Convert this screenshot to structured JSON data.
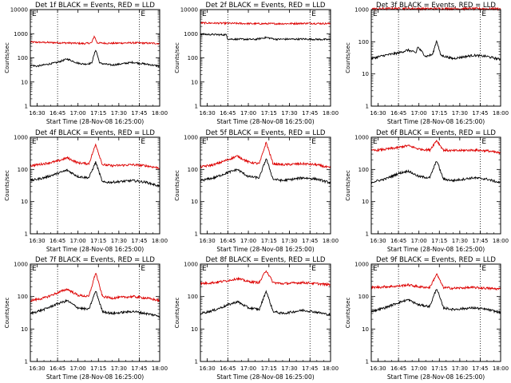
{
  "chart_data": [
    {
      "type": "line",
      "title": "Det 1f BLACK = Events, RED = LLD",
      "xlabel": "Start Time (28-Nov-08 16:25:00)",
      "ylabel": "Counts/sec",
      "y_scale": "log",
      "ylim": [
        1,
        10000
      ],
      "xlim": [
        "16:25",
        "18:00"
      ],
      "x_ticks": [
        "16:30",
        "16:45",
        "17:00",
        "17:15",
        "17:30",
        "17:45",
        "18:00"
      ],
      "y_ticks": [
        "1",
        "10",
        "100",
        "1000",
        "10000"
      ],
      "corner_marks": [
        "E",
        "E"
      ],
      "vlines": [
        "16:45",
        "17:45"
      ],
      "series": [
        {
          "color": "#dd0000",
          "x": [
            "16:25",
            "16:40",
            "16:55",
            "17:05",
            "17:10",
            "17:12",
            "17:14",
            "17:17",
            "17:25",
            "17:40",
            "17:55",
            "18:00"
          ],
          "values": [
            450,
            430,
            410,
            390,
            420,
            800,
            420,
            410,
            400,
            420,
            400,
            390
          ]
        },
        {
          "color": "#000000",
          "x": [
            "16:25",
            "16:30",
            "16:45",
            "16:52",
            "17:00",
            "17:05",
            "17:10",
            "17:13",
            "17:16",
            "17:25",
            "17:40",
            "17:50",
            "18:00"
          ],
          "values": [
            50,
            45,
            65,
            90,
            60,
            55,
            60,
            220,
            60,
            50,
            65,
            55,
            45
          ]
        }
      ]
    },
    {
      "type": "line",
      "title": "Det 2f BLACK = Events, RED = LLD",
      "xlabel": "Start Time (28-Nov-08 16:25:00)",
      "ylabel": "Counts/sec",
      "y_scale": "log",
      "ylim": [
        1,
        10000
      ],
      "xlim": [
        "16:25",
        "18:00"
      ],
      "x_ticks": [
        "16:30",
        "16:45",
        "17:00",
        "17:15",
        "17:30",
        "17:45",
        "18:00"
      ],
      "y_ticks": [
        "1",
        "10",
        "100",
        "1000",
        "10000"
      ],
      "corner_marks": [
        "E",
        "E"
      ],
      "vlines": [
        "16:45",
        "17:45"
      ],
      "series": [
        {
          "color": "#dd0000",
          "x": [
            "16:25",
            "16:45",
            "17:05",
            "17:25",
            "17:45",
            "18:00"
          ],
          "values": [
            2800,
            2700,
            2600,
            2600,
            2700,
            2600
          ]
        },
        {
          "color": "#000000",
          "x": [
            "16:25",
            "16:44",
            "16:45",
            "17:05",
            "17:13",
            "17:20",
            "17:40",
            "18:00"
          ],
          "values": [
            950,
            900,
            600,
            580,
            700,
            590,
            600,
            570
          ]
        }
      ]
    },
    {
      "type": "line",
      "title": "Det 3f BLACK = Events, RED = LLD",
      "xlabel": "Start Time (28-Nov-08 16:25:00)",
      "ylabel": "Counts/sec",
      "y_scale": "log",
      "ylim": [
        1,
        1000
      ],
      "xlim": [
        "16:25",
        "18:00"
      ],
      "x_ticks": [
        "16:30",
        "16:45",
        "17:00",
        "17:15",
        "17:30",
        "17:45",
        "18:00"
      ],
      "y_ticks": [
        "1",
        "10",
        "100",
        "1000"
      ],
      "corner_marks": [
        "E",
        "E"
      ],
      "vlines": [
        "16:45",
        "17:45"
      ],
      "series": [
        {
          "color": "#dd0000",
          "x": [
            "16:25",
            "16:45",
            "17:05",
            "17:25",
            "17:45",
            "18:00"
          ],
          "values": [
            1050,
            1080,
            1060,
            1070,
            1060,
            1050
          ]
        },
        {
          "color": "#000000",
          "x": [
            "16:25",
            "16:35",
            "16:45",
            "16:52",
            "16:58",
            "16:59",
            "17:05",
            "17:10",
            "17:13",
            "17:16",
            "17:25",
            "17:40",
            "17:50",
            "18:00"
          ],
          "values": [
            30,
            38,
            45,
            55,
            45,
            70,
            35,
            40,
            110,
            38,
            30,
            38,
            35,
            28
          ]
        }
      ]
    },
    {
      "type": "line",
      "title": "Det 4f BLACK = Events, RED = LLD",
      "xlabel": "Start Time (28-Nov-08 16:25:00)",
      "ylabel": "Counts/sec",
      "y_scale": "log",
      "ylim": [
        1,
        1000
      ],
      "xlim": [
        "16:25",
        "18:00"
      ],
      "x_ticks": [
        "16:30",
        "16:45",
        "17:00",
        "17:15",
        "17:30",
        "17:45",
        "18:00"
      ],
      "y_ticks": [
        "1",
        "10",
        "100",
        "1000"
      ],
      "corner_marks": [
        "E",
        "E"
      ],
      "vlines": [
        "16:45",
        "17:45"
      ],
      "series": [
        {
          "color": "#dd0000",
          "x": [
            "16:25",
            "16:35",
            "16:45",
            "16:52",
            "17:00",
            "17:08",
            "17:13",
            "17:18",
            "17:25",
            "17:40",
            "17:50",
            "18:00"
          ],
          "values": [
            130,
            150,
            180,
            230,
            160,
            150,
            600,
            140,
            130,
            140,
            130,
            110
          ]
        },
        {
          "color": "#000000",
          "x": [
            "16:25",
            "16:35",
            "16:45",
            "16:52",
            "17:00",
            "17:08",
            "17:13",
            "17:18",
            "17:25",
            "17:40",
            "17:50",
            "18:00"
          ],
          "values": [
            45,
            55,
            75,
            95,
            60,
            55,
            170,
            40,
            40,
            45,
            40,
            30
          ]
        }
      ]
    },
    {
      "type": "line",
      "title": "Det 5f BLACK = Events, RED = LLD",
      "xlabel": "Start Time (28-Nov-08 16:25:00)",
      "ylabel": "Counts/sec",
      "y_scale": "log",
      "ylim": [
        1,
        1000
      ],
      "xlim": [
        "16:25",
        "18:00"
      ],
      "x_ticks": [
        "16:30",
        "16:45",
        "17:00",
        "17:15",
        "17:30",
        "17:45",
        "18:00"
      ],
      "y_ticks": [
        "1",
        "10",
        "100",
        "1000"
      ],
      "corner_marks": [
        "E",
        "E"
      ],
      "vlines": [
        "16:45",
        "17:45"
      ],
      "series": [
        {
          "color": "#dd0000",
          "x": [
            "16:25",
            "16:35",
            "16:45",
            "16:52",
            "17:00",
            "17:08",
            "17:13",
            "17:18",
            "17:25",
            "17:40",
            "17:50",
            "18:00"
          ],
          "values": [
            120,
            140,
            200,
            260,
            170,
            150,
            700,
            150,
            140,
            150,
            140,
            110
          ]
        },
        {
          "color": "#000000",
          "x": [
            "16:25",
            "16:35",
            "16:45",
            "16:52",
            "17:00",
            "17:08",
            "17:13",
            "17:18",
            "17:25",
            "17:40",
            "17:50",
            "18:00"
          ],
          "values": [
            45,
            55,
            80,
            100,
            60,
            55,
            220,
            50,
            45,
            55,
            50,
            38
          ]
        }
      ]
    },
    {
      "type": "line",
      "title": "Det 6f BLACK = Events, RED = LLD",
      "xlabel": "Start Time (28-Nov-08 16:25:00)",
      "ylabel": "Counts/sec",
      "y_scale": "log",
      "ylim": [
        1,
        1000
      ],
      "xlim": [
        "16:25",
        "18:00"
      ],
      "x_ticks": [
        "16:30",
        "16:45",
        "17:00",
        "17:15",
        "17:30",
        "17:45",
        "18:00"
      ],
      "y_ticks": [
        "1",
        "10",
        "100",
        "1000"
      ],
      "corner_marks": [
        "E",
        "E"
      ],
      "vlines": [
        "16:45",
        "17:45"
      ],
      "series": [
        {
          "color": "#dd0000",
          "x": [
            "16:25",
            "16:35",
            "16:45",
            "16:52",
            "17:00",
            "17:08",
            "17:13",
            "17:18",
            "17:25",
            "17:40",
            "17:50",
            "18:00"
          ],
          "values": [
            380,
            420,
            480,
            550,
            430,
            400,
            800,
            400,
            380,
            400,
            380,
            320
          ]
        },
        {
          "color": "#000000",
          "x": [
            "16:25",
            "16:35",
            "16:45",
            "16:52",
            "17:00",
            "17:08",
            "17:13",
            "17:18",
            "17:25",
            "17:40",
            "17:50",
            "18:00"
          ],
          "values": [
            40,
            50,
            75,
            90,
            60,
            55,
            190,
            50,
            45,
            55,
            50,
            38
          ]
        }
      ]
    },
    {
      "type": "line",
      "title": "Det 7f BLACK = Events, RED = LLD",
      "xlabel": "Start Time (28-Nov-08 16:25:00)",
      "ylabel": "Counts/sec",
      "y_scale": "log",
      "ylim": [
        1,
        1000
      ],
      "xlim": [
        "16:25",
        "18:00"
      ],
      "x_ticks": [
        "16:30",
        "16:45",
        "17:00",
        "17:15",
        "17:30",
        "17:45",
        "18:00"
      ],
      "y_ticks": [
        "1",
        "10",
        "100",
        "1000"
      ],
      "corner_marks": [
        "E",
        "E"
      ],
      "vlines": [
        "16:45",
        "17:45"
      ],
      "series": [
        {
          "color": "#dd0000",
          "x": [
            "16:25",
            "16:35",
            "16:45",
            "16:52",
            "17:00",
            "17:08",
            "17:13",
            "17:18",
            "17:25",
            "17:40",
            "17:50",
            "18:00"
          ],
          "values": [
            75,
            90,
            130,
            170,
            110,
            100,
            550,
            100,
            90,
            100,
            90,
            75
          ]
        },
        {
          "color": "#000000",
          "x": [
            "16:25",
            "16:35",
            "16:45",
            "16:52",
            "17:00",
            "17:08",
            "17:13",
            "17:18",
            "17:25",
            "17:40",
            "17:50",
            "18:00"
          ],
          "values": [
            30,
            40,
            60,
            75,
            45,
            40,
            150,
            35,
            30,
            35,
            30,
            25
          ]
        }
      ]
    },
    {
      "type": "line",
      "title": "Det 8f BLACK = Events, RED = LLD",
      "xlabel": "Start Time (28-Nov-08 16:25:00)",
      "ylabel": "Counts/sec",
      "y_scale": "log",
      "ylim": [
        1,
        1000
      ],
      "xlim": [
        "16:25",
        "18:00"
      ],
      "x_ticks": [
        "16:30",
        "16:45",
        "17:00",
        "17:15",
        "17:30",
        "17:45",
        "18:00"
      ],
      "y_ticks": [
        "1",
        "10",
        "100",
        "1000"
      ],
      "corner_marks": [
        "E",
        "E"
      ],
      "vlines": [
        "16:45",
        "17:45"
      ],
      "series": [
        {
          "color": "#dd0000",
          "x": [
            "16:25",
            "16:35",
            "16:45",
            "16:52",
            "17:00",
            "17:08",
            "17:13",
            "17:18",
            "17:25",
            "17:40",
            "17:50",
            "18:00"
          ],
          "values": [
            250,
            270,
            310,
            360,
            290,
            270,
            650,
            270,
            250,
            270,
            250,
            230
          ]
        },
        {
          "color": "#000000",
          "x": [
            "16:25",
            "16:35",
            "16:45",
            "16:52",
            "17:00",
            "17:08",
            "17:13",
            "17:18",
            "17:25",
            "17:40",
            "17:50",
            "18:00"
          ],
          "values": [
            30,
            38,
            55,
            70,
            45,
            40,
            150,
            35,
            30,
            38,
            33,
            27
          ]
        }
      ]
    },
    {
      "type": "line",
      "title": "Det 9f BLACK = Events, RED = LLD",
      "xlabel": "Start Time (28-Nov-08 16:25:00)",
      "ylabel": "Counts/sec",
      "y_scale": "log",
      "ylim": [
        1,
        1000
      ],
      "xlim": [
        "16:25",
        "18:00"
      ],
      "x_ticks": [
        "16:30",
        "16:45",
        "17:00",
        "17:15",
        "17:30",
        "17:45",
        "18:00"
      ],
      "y_ticks": [
        "1",
        "10",
        "100",
        "1000"
      ],
      "corner_marks": [
        "E",
        "E"
      ],
      "vlines": [
        "16:45",
        "17:45"
      ],
      "series": [
        {
          "color": "#dd0000",
          "x": [
            "16:25",
            "16:35",
            "16:45",
            "16:52",
            "17:00",
            "17:08",
            "17:13",
            "17:18",
            "17:25",
            "17:40",
            "17:50",
            "18:00"
          ],
          "values": [
            190,
            200,
            210,
            230,
            200,
            190,
            500,
            190,
            180,
            190,
            180,
            170
          ]
        },
        {
          "color": "#000000",
          "x": [
            "16:25",
            "16:35",
            "16:45",
            "16:52",
            "17:00",
            "17:08",
            "17:13",
            "17:18",
            "17:25",
            "17:40",
            "17:50",
            "18:00"
          ],
          "values": [
            35,
            45,
            65,
            80,
            55,
            50,
            180,
            45,
            40,
            45,
            40,
            32
          ]
        }
      ]
    }
  ]
}
